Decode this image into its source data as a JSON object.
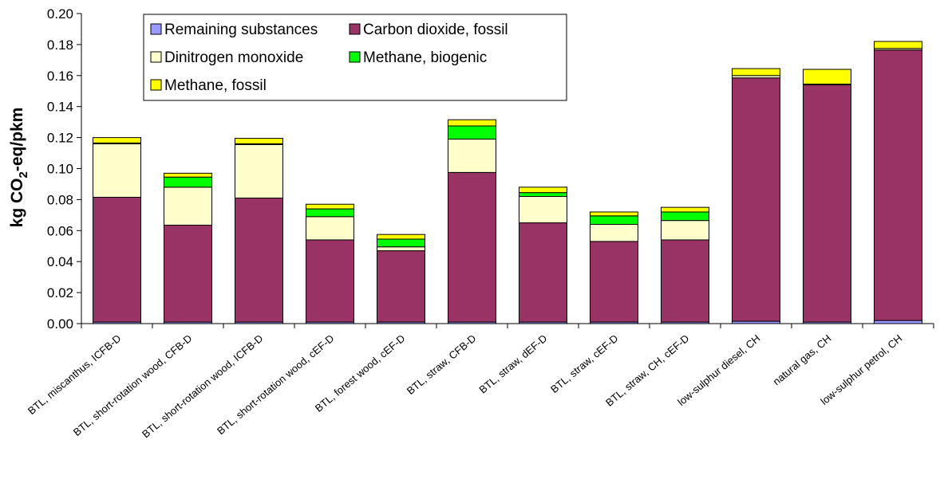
{
  "chart_data": {
    "type": "bar",
    "stacked": true,
    "ylabel_main": "kg CO",
    "ylabel_sub": "2",
    "ylabel_rest": "-eq/pkm",
    "ylim": [
      0,
      0.2
    ],
    "yticks": [
      "0.00",
      "0.02",
      "0.04",
      "0.06",
      "0.08",
      "0.10",
      "0.12",
      "0.14",
      "0.16",
      "0.18",
      "0.20"
    ],
    "grid": false,
    "legend_position": "top-left",
    "categories": [
      "BTL, miscanthus, ICFB-D",
      "BTL, short-rotation wood, CFB-D",
      "BTL, short-rotation wood, ICFB-D",
      "BTL, short-rotation wood, cEF-D",
      "BTL, forest wood, cEF-D",
      "BTL, straw, CFB-D",
      "BTL, straw, dEF-D",
      "BTL, straw, cEF-D",
      "BTL, straw, CH, cEF-D",
      "low-sulphur diesel, CH",
      "natural gas, CH",
      "low-sulphur petrol, CH"
    ],
    "series": [
      {
        "name": "Remaining substances",
        "color": "#9999ff",
        "values": [
          0.001,
          0.001,
          0.001,
          0.001,
          0.001,
          0.001,
          0.001,
          0.001,
          0.001,
          0.0015,
          0.001,
          0.002
        ]
      },
      {
        "name": "Carbon dioxide, fossil",
        "color": "#993366",
        "values": [
          0.0805,
          0.0625,
          0.08,
          0.053,
          0.046,
          0.0965,
          0.064,
          0.052,
          0.053,
          0.157,
          0.153,
          0.1745
        ]
      },
      {
        "name": "Dinitrogen monoxide",
        "color": "#ffffcc",
        "values": [
          0.0345,
          0.0245,
          0.0345,
          0.015,
          0.0025,
          0.0215,
          0.017,
          0.011,
          0.0125,
          0.0015,
          0.0005,
          0.001
        ]
      },
      {
        "name": "Methane, biogenic",
        "color": "#00ff00",
        "values": [
          0.0005,
          0.0065,
          0.0005,
          0.005,
          0.005,
          0.0085,
          0.0025,
          0.0055,
          0.0055,
          0.0,
          0.0,
          0.0
        ]
      },
      {
        "name": "Methane, fossil",
        "color": "#ffff00",
        "values": [
          0.0035,
          0.0025,
          0.0035,
          0.003,
          0.003,
          0.004,
          0.0035,
          0.0025,
          0.003,
          0.0045,
          0.0095,
          0.0045
        ]
      }
    ],
    "legend_order": [
      0,
      1,
      2,
      3,
      4
    ]
  }
}
